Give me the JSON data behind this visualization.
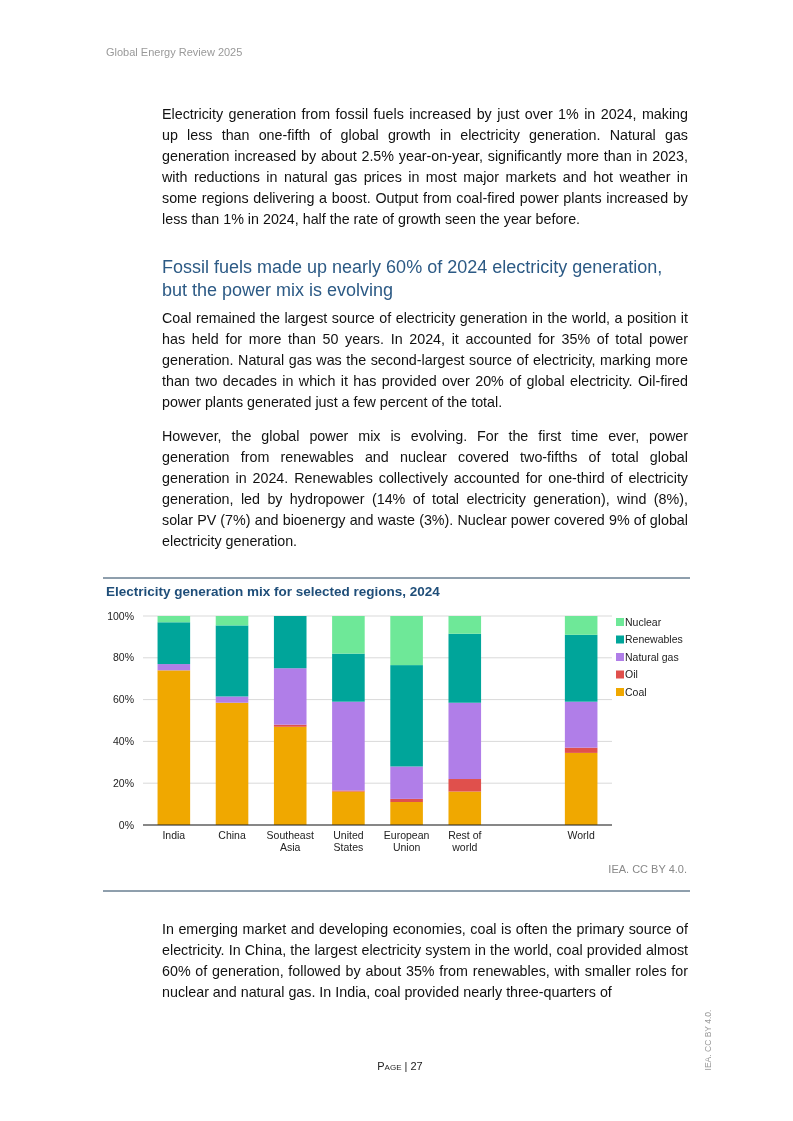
{
  "chart_data": {
    "type": "bar",
    "stacked": true,
    "title": "Electricity generation mix for selected regions, 2024",
    "categories": [
      "India",
      "China",
      "Southeast Asia",
      "United States",
      "European Union",
      "Rest of world",
      null,
      "World"
    ],
    "series": [
      {
        "name": "Coal",
        "color": "#f0a800",
        "values": [
          74,
          58.5,
          47,
          16,
          11,
          16,
          null,
          34.5
        ]
      },
      {
        "name": "Oil",
        "color": "#e0504c",
        "values": [
          0,
          0,
          1,
          0.5,
          1.5,
          6,
          null,
          2.5
        ]
      },
      {
        "name": "Natural gas",
        "color": "#b07ee8",
        "values": [
          3,
          3,
          27,
          42.5,
          15.5,
          36.5,
          null,
          22
        ]
      },
      {
        "name": "Renewables",
        "color": "#00a59a",
        "values": [
          20,
          34,
          25,
          23,
          48.5,
          33,
          null,
          32
        ]
      },
      {
        "name": "Nuclear",
        "color": "#6ee898",
        "values": [
          3,
          4.5,
          0,
          18,
          23.5,
          8.5,
          null,
          9
        ]
      }
    ],
    "ylim": [
      0,
      100
    ],
    "yticks": [
      {
        "value": 0,
        "label": "0%"
      },
      {
        "value": 20,
        "label": "20%"
      },
      {
        "value": 40,
        "label": "40%"
      },
      {
        "value": 60,
        "label": "60%"
      },
      {
        "value": 80,
        "label": "80%"
      },
      {
        "value": 100,
        "label": "100%"
      }
    ],
    "grid": "y",
    "legend": "right",
    "annotations": [
      "Global Energy Review 2025",
      "Electricity generation from fossil fuels increased by just over 1% in 2024, making up less than one-fifth of global growth in electricity generation. Natural gas generation increased by about 2.5% year-on-year, significantly more than in 2023, with reductions in natural gas prices in most major markets and hot weather in some regions delivering a boost. Output from coal-fired power plants increased by less than 1% in 2024, half the rate of growth seen the year before.",
      "Fossil fuels made up nearly 60% of 2024 electricity generation, but the power mix is evolving",
      "Coal remained the largest source of electricity generation in the world, a position it has held for more than 50 years. In 2024, it accounted for 35% of total power generation. Natural gas was the second-largest source of electricity, marking more than two decades in which it has provided over 20% of global electricity. Oil-fired power plants generated just a few percent of the total.",
      "However, the global power mix is evolving. For the first time ever, power generation from renewables and nuclear covered two-fifths of total global generation in 2024. Renewables collectively accounted for one-third of electricity generation, led by hydropower (14% of total electricity generation), wind (8%), solar PV (7%) and bioenergy and waste (3%). Nuclear power covered 9% of global electricity generation.",
      "IEA. CC BY 4.0.",
      "In emerging market and developing economies, coal is often the primary source of electricity. In China, the largest electricity system in the world, coal provided almost 60% of generation, followed by about 35% from renewables, with smaller roles for nuclear and natural gas. In India, coal provided nearly three-quarters of",
      "Page | 27",
      "IEA. CC BY 4.0."
    ]
  }
}
